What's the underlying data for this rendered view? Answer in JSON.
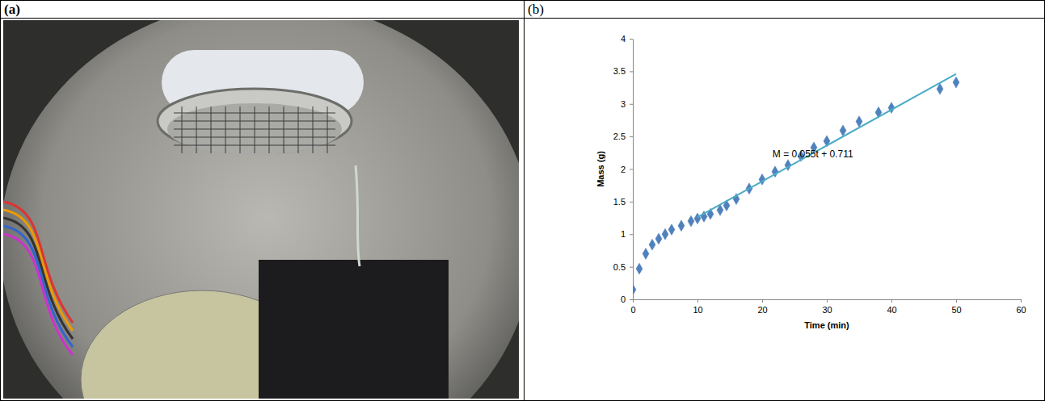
{
  "figure": {
    "labels": [
      "(a)",
      "(b)"
    ]
  },
  "chart_data": {
    "type": "scatter",
    "x_label": "Time (min)",
    "y_label": "Mass (g)",
    "annotation": "M = 0.055t + 0.711",
    "xlim": [
      0,
      60
    ],
    "xticks": [
      0,
      10,
      20,
      30,
      40,
      50,
      60
    ],
    "ylim": [
      0,
      4
    ],
    "yticks": [
      0,
      0.5,
      1,
      1.5,
      2,
      2.5,
      3,
      3.5,
      4
    ],
    "grid": false,
    "series": [
      {
        "type": "scatter",
        "marker": "diamond",
        "color": "#4f81bd",
        "x": [
          0,
          1,
          2,
          3,
          4,
          5,
          6,
          7.5,
          9,
          10,
          11,
          12,
          13.5,
          14.5,
          16,
          18,
          20,
          22,
          24,
          26,
          28,
          30,
          32.5,
          35,
          38,
          40,
          47.5,
          50
        ],
        "values": [
          0.15,
          0.47,
          0.7,
          0.84,
          0.93,
          1.0,
          1.07,
          1.13,
          1.2,
          1.24,
          1.27,
          1.31,
          1.37,
          1.44,
          1.54,
          1.7,
          1.84,
          1.96,
          2.06,
          2.2,
          2.33,
          2.43,
          2.59,
          2.73,
          2.87,
          2.94,
          3.23,
          3.33
        ]
      },
      {
        "type": "line",
        "line_style": "solid",
        "color": "#4bacc6",
        "x": [
          10,
          50
        ],
        "values": [
          1.261,
          3.461
        ]
      }
    ]
  }
}
